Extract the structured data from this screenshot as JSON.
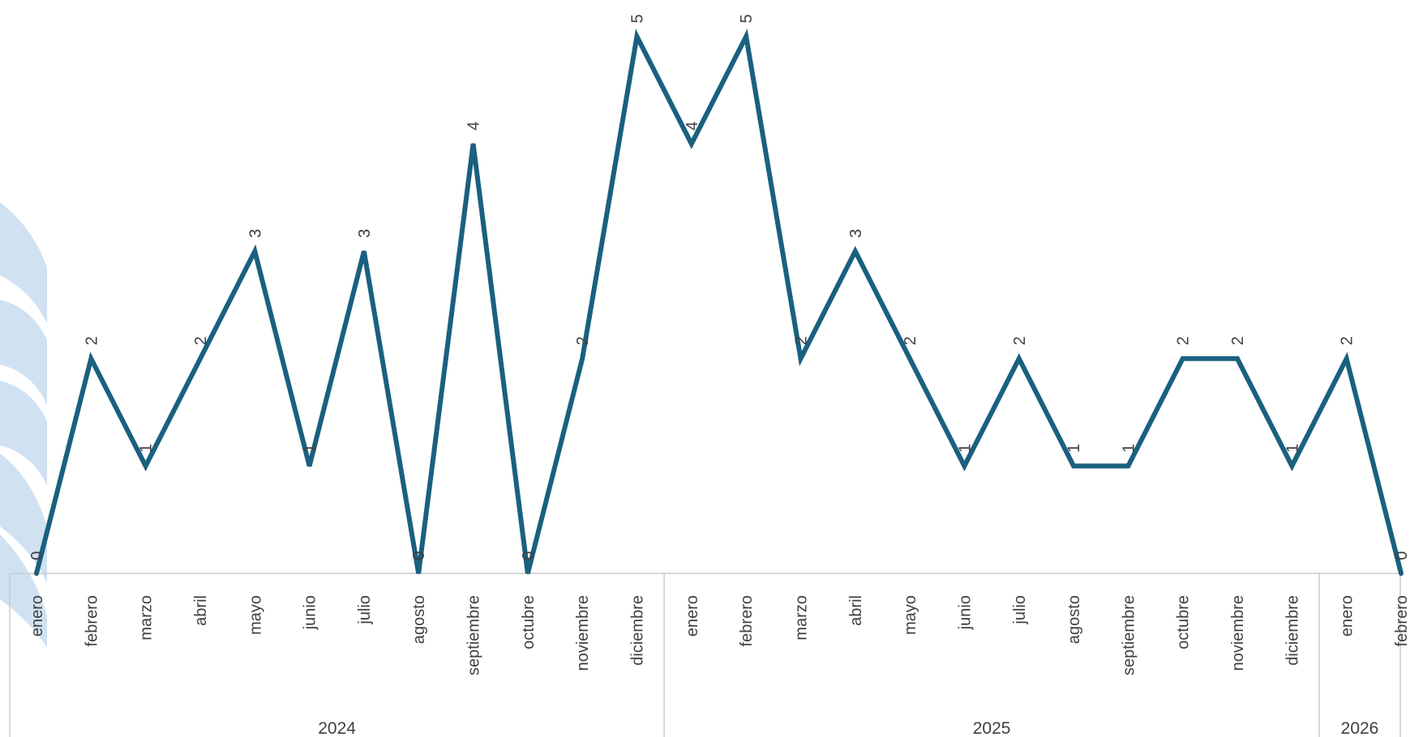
{
  "chart_data": {
    "type": "line",
    "title": "",
    "xlabel": "",
    "ylabel": "",
    "ylim": [
      0,
      5
    ],
    "grid": false,
    "legend": "none",
    "line_color": "#1a6080",
    "watermark_color": "#c4d9ef",
    "axis_color": "#cccccc",
    "x": [
      {
        "month": "enero",
        "year": "2024"
      },
      {
        "month": "febrero",
        "year": "2024"
      },
      {
        "month": "marzo",
        "year": "2024"
      },
      {
        "month": "abril",
        "year": "2024"
      },
      {
        "month": "mayo",
        "year": "2024"
      },
      {
        "month": "junio",
        "year": "2024"
      },
      {
        "month": "julio",
        "year": "2024"
      },
      {
        "month": "agosto",
        "year": "2024"
      },
      {
        "month": "septiembre",
        "year": "2024"
      },
      {
        "month": "octubre",
        "year": "2024"
      },
      {
        "month": "noviembre",
        "year": "2024"
      },
      {
        "month": "diciembre",
        "year": "2024"
      },
      {
        "month": "enero",
        "year": "2025"
      },
      {
        "month": "febrero",
        "year": "2025"
      },
      {
        "month": "marzo",
        "year": "2025"
      },
      {
        "month": "abril",
        "year": "2025"
      },
      {
        "month": "mayo",
        "year": "2025"
      },
      {
        "month": "junio",
        "year": "2025"
      },
      {
        "month": "julio",
        "year": "2025"
      },
      {
        "month": "agosto",
        "year": "2025"
      },
      {
        "month": "septiembre",
        "year": "2025"
      },
      {
        "month": "octubre",
        "year": "2025"
      },
      {
        "month": "noviembre",
        "year": "2025"
      },
      {
        "month": "diciembre",
        "year": "2025"
      },
      {
        "month": "enero",
        "year": "2026"
      },
      {
        "month": "febrero",
        "year": "2026"
      }
    ],
    "years": [
      "2024",
      "2025",
      "2026"
    ],
    "values": [
      0,
      2,
      1,
      2,
      3,
      1,
      3,
      0,
      4,
      0,
      2,
      5,
      4,
      5,
      2,
      3,
      2,
      1,
      2,
      1,
      1,
      2,
      2,
      1,
      2,
      0
    ],
    "data_labels": [
      "0",
      "2",
      "1",
      "2",
      "3",
      "1",
      "3",
      "0",
      "4",
      "0",
      "2",
      "5",
      "4",
      "5",
      "2",
      "3",
      "2",
      "1",
      "2",
      "1",
      "1",
      "2",
      "2",
      "1",
      "2",
      "0"
    ]
  }
}
